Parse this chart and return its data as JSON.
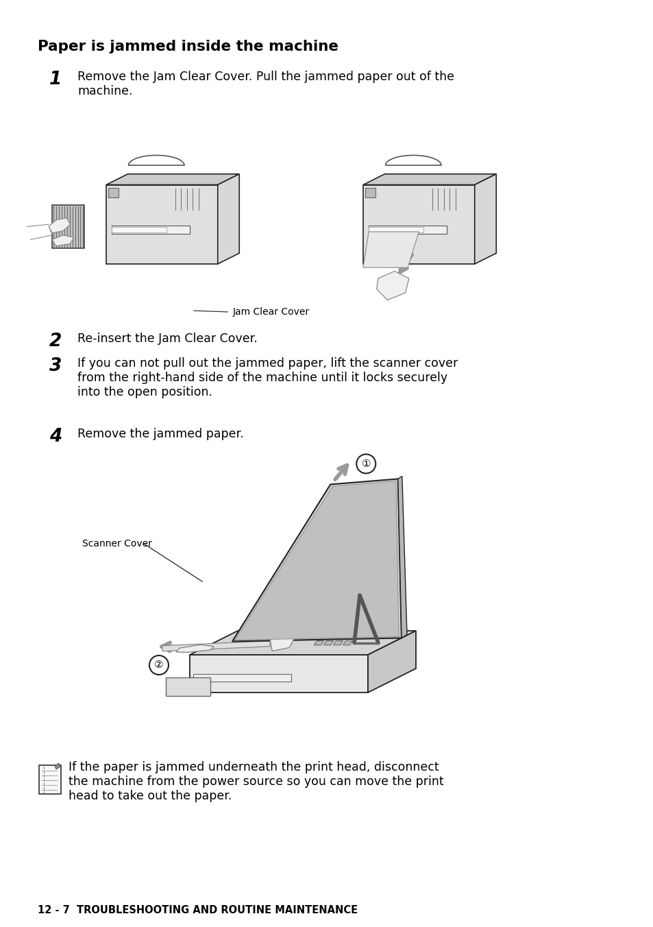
{
  "title": "Paper is jammed inside the machine",
  "bg_color": "#ffffff",
  "text_color": "#000000",
  "step1_num": "1",
  "step1_text_line1": "Remove the Jam Clear Cover. Pull the jammed paper out of the",
  "step1_text_line2": "machine.",
  "step2_num": "2",
  "step2_text": "Re-insert the Jam Clear Cover.",
  "step3_num": "3",
  "step3_text_line1": "If you can not pull out the jammed paper, lift the scanner cover",
  "step3_text_line2": "from the right-hand side of the machine until it locks securely",
  "step3_text_line3": "into the open position.",
  "step4_num": "4",
  "step4_text": "Remove the jammed paper.",
  "jam_clear_cover_label": "Jam Clear Cover",
  "scanner_cover_label": "Scanner Cover",
  "note_text_line1": "If the paper is jammed underneath the print head, disconnect",
  "note_text_line2": "the machine from the power source so you can move the print",
  "note_text_line3": "head to take out the paper.",
  "footer_text": "12 - 7  TROUBLESHOOTING AND ROUTINE MAINTENANCE",
  "gray_arrow": "#999999",
  "dark_line": "#222222",
  "mid_gray": "#aaaaaa",
  "light_gray": "#cccccc",
  "lighter_gray": "#e0e0e0",
  "body_gray": "#d8d8d8"
}
